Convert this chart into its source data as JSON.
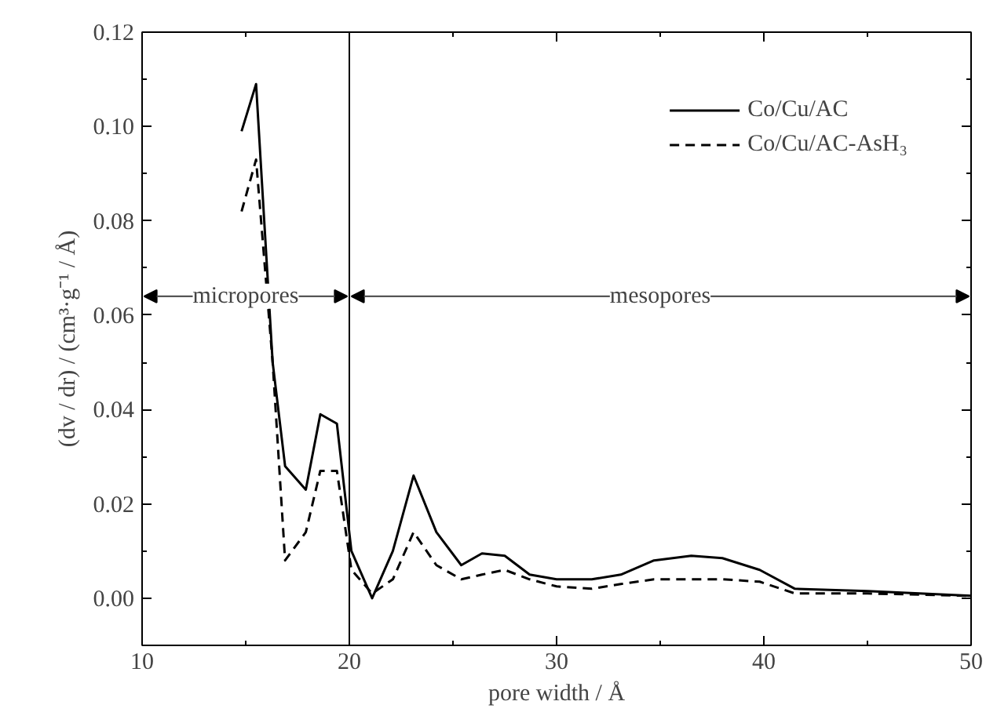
{
  "chart_data": {
    "type": "line",
    "xlabel": "pore width / Å",
    "ylabel": "(dv / dr) / (cm³·g⁻¹ / Å)",
    "xlim": [
      10,
      50
    ],
    "ylim": [
      -0.01,
      0.12
    ],
    "xticks": [
      10,
      20,
      30,
      40,
      50
    ],
    "yticks": [
      {
        "value": 0,
        "label": "0.00"
      },
      {
        "value": 0.02,
        "label": "0.02"
      },
      {
        "value": 0.04,
        "label": "0.04"
      },
      {
        "value": 0.06,
        "label": "0.06"
      },
      {
        "value": 0.08,
        "label": "0.08"
      },
      {
        "value": 0.1,
        "label": "0.10"
      },
      {
        "value": 0.12,
        "label": "0.12"
      }
    ],
    "x": [
      14.8,
      15.5,
      16.3,
      16.9,
      17.9,
      18.6,
      19.4,
      20.1,
      21.1,
      22.1,
      23.1,
      24.2,
      25.4,
      26.4,
      27.5,
      28.7,
      30,
      31.7,
      33.1,
      34.7,
      36.5,
      38,
      39.8,
      41.5,
      45,
      50
    ],
    "series": [
      {
        "name": "Co/Cu/AC",
        "color": "#000000",
        "line_style": "solid",
        "values": [
          0.099,
          0.109,
          0.05,
          0.028,
          0.023,
          0.039,
          0.037,
          0.01,
          0.0,
          0.01,
          0.026,
          0.014,
          0.007,
          0.0095,
          0.009,
          0.005,
          0.004,
          0.004,
          0.005,
          0.008,
          0.009,
          0.0085,
          0.006,
          0.002,
          0.0015,
          0.0005
        ]
      },
      {
        "name": "Co/Cu/AC-AsH₃",
        "color": "#000000",
        "line_style": "dashed",
        "values": [
          0.082,
          0.093,
          0.05,
          0.008,
          0.014,
          0.027,
          0.027,
          0.006,
          0.001,
          0.004,
          0.014,
          0.007,
          0.004,
          0.005,
          0.006,
          0.004,
          0.0025,
          0.002,
          0.003,
          0.004,
          0.004,
          0.004,
          0.0035,
          0.001,
          0.001,
          0.0005
        ]
      }
    ],
    "ref_lines": [
      {
        "axis": "x",
        "value": 20,
        "color": "#000000"
      }
    ],
    "annotations": [
      {
        "text": "micropores",
        "x": 20,
        "y": 0.064
      },
      {
        "text": "mesopores",
        "x": 20,
        "y": 0.064
      }
    ],
    "legend": "top right",
    "grid": false,
    "marker": "none"
  }
}
